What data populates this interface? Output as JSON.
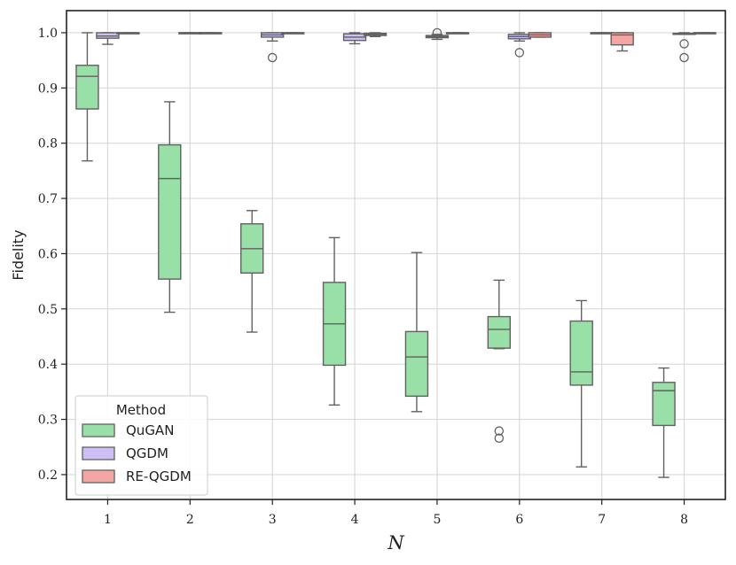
{
  "chart_data": {
    "type": "box",
    "title": "",
    "xlabel": "N",
    "ylabel": "Fidelity",
    "categories": [
      "1",
      "2",
      "3",
      "4",
      "5",
      "6",
      "7",
      "8"
    ],
    "ylim": [
      0.155,
      1.04
    ],
    "yticks": [
      0.2,
      0.3,
      0.4,
      0.5,
      0.6,
      0.7,
      0.8,
      0.9,
      1.0
    ],
    "grid": true,
    "legend": {
      "title": "Method",
      "position": "lower-left"
    },
    "series": [
      {
        "name": "QuGAN",
        "color": "#98e0a8",
        "boxes": [
          {
            "category": "1",
            "min": 0.768,
            "q1": 0.862,
            "median": 0.921,
            "q3": 0.941,
            "max": 1.0,
            "outliers": []
          },
          {
            "category": "2",
            "min": 0.494,
            "q1": 0.554,
            "median": 0.736,
            "q3": 0.797,
            "max": 0.875,
            "outliers": []
          },
          {
            "category": "3",
            "min": 0.458,
            "q1": 0.565,
            "median": 0.609,
            "q3": 0.654,
            "max": 0.678,
            "outliers": []
          },
          {
            "category": "4",
            "min": 0.326,
            "q1": 0.398,
            "median": 0.473,
            "q3": 0.548,
            "max": 0.629,
            "outliers": []
          },
          {
            "category": "5",
            "min": 0.314,
            "q1": 0.342,
            "median": 0.413,
            "q3": 0.459,
            "max": 0.602,
            "outliers": []
          },
          {
            "category": "6",
            "min": 0.428,
            "q1": 0.429,
            "median": 0.463,
            "q3": 0.486,
            "max": 0.552,
            "outliers": [
              0.279,
              0.266
            ]
          },
          {
            "category": "7",
            "min": 0.214,
            "q1": 0.362,
            "median": 0.386,
            "q3": 0.478,
            "max": 0.515,
            "outliers": []
          },
          {
            "category": "8",
            "min": 0.195,
            "q1": 0.289,
            "median": 0.352,
            "q3": 0.367,
            "max": 0.393,
            "outliers": []
          }
        ]
      },
      {
        "name": "QGDM",
        "color": "#cdbff5",
        "boxes": [
          {
            "category": "1",
            "min": 0.979,
            "q1": 0.99,
            "median": 0.994,
            "q3": 1.0,
            "max": 1.0,
            "outliers": []
          },
          {
            "category": "2",
            "min": 0.999,
            "q1": 0.999,
            "median": 1.0,
            "q3": 1.0,
            "max": 1.0,
            "outliers": []
          },
          {
            "category": "3",
            "min": 0.985,
            "q1": 0.992,
            "median": 0.996,
            "q3": 1.0,
            "max": 1.0,
            "outliers": [
              0.955
            ]
          },
          {
            "category": "4",
            "min": 0.98,
            "q1": 0.986,
            "median": 0.992,
            "q3": 0.998,
            "max": 1.0,
            "outliers": []
          },
          {
            "category": "5",
            "min": 0.988,
            "q1": 0.991,
            "median": 0.993,
            "q3": 0.995,
            "max": 0.997,
            "outliers": [
              1.0
            ]
          },
          {
            "category": "6",
            "min": 0.985,
            "q1": 0.989,
            "median": 0.993,
            "q3": 0.997,
            "max": 1.0,
            "outliers": [
              0.964
            ]
          },
          {
            "category": "7",
            "min": 0.999,
            "q1": 0.999,
            "median": 1.0,
            "q3": 1.0,
            "max": 1.0,
            "outliers": []
          },
          {
            "category": "8",
            "min": 0.997,
            "q1": 0.997,
            "median": 0.998,
            "q3": 0.999,
            "max": 1.0,
            "outliers": [
              0.98,
              0.955
            ]
          }
        ]
      },
      {
        "name": "RE-QGDM",
        "color": "#f4a7a2",
        "boxes": [
          {
            "category": "1",
            "min": 0.999,
            "q1": 0.999,
            "median": 1.0,
            "q3": 1.0,
            "max": 1.0,
            "outliers": []
          },
          {
            "category": "2",
            "min": 0.999,
            "q1": 0.999,
            "median": 1.0,
            "q3": 1.0,
            "max": 1.0,
            "outliers": []
          },
          {
            "category": "3",
            "min": 0.999,
            "q1": 0.999,
            "median": 1.0,
            "q3": 1.0,
            "max": 1.0,
            "outliers": []
          },
          {
            "category": "4",
            "min": 0.993,
            "q1": 0.995,
            "median": 0.997,
            "q3": 0.999,
            "max": 1.0,
            "outliers": []
          },
          {
            "category": "5",
            "min": 0.999,
            "q1": 0.999,
            "median": 1.0,
            "q3": 1.0,
            "max": 1.0,
            "outliers": []
          },
          {
            "category": "6",
            "min": 0.992,
            "q1": 0.992,
            "median": 0.996,
            "q3": 1.0,
            "max": 1.0,
            "outliers": []
          },
          {
            "category": "7",
            "min": 0.967,
            "q1": 0.978,
            "median": 0.996,
            "q3": 1.0,
            "max": 1.0,
            "outliers": []
          },
          {
            "category": "8",
            "min": 0.999,
            "q1": 0.999,
            "median": 1.0,
            "q3": 1.0,
            "max": 1.0,
            "outliers": []
          }
        ]
      }
    ]
  }
}
